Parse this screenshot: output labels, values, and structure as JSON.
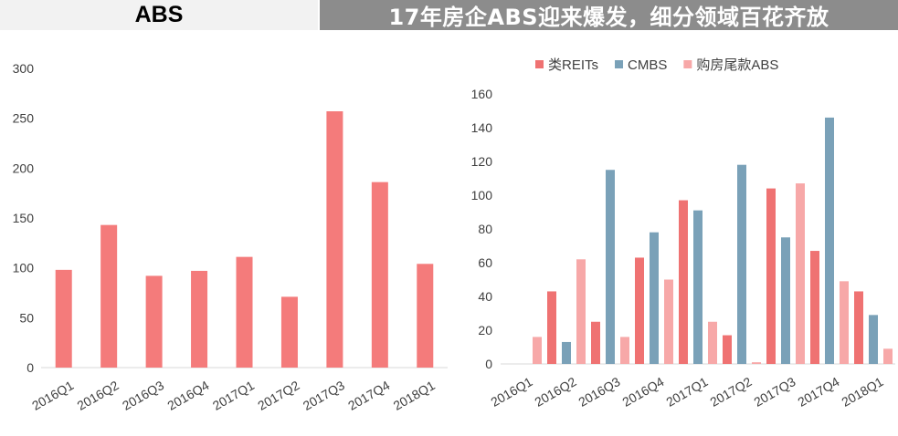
{
  "header": {
    "left_title": "ABS",
    "right_title": "17年房企ABS迎来爆发，细分领域百花齐放"
  },
  "chart_data": [
    {
      "type": "bar",
      "title": "",
      "xlabel": "",
      "ylabel": "",
      "categories": [
        "2016Q1",
        "2016Q2",
        "2016Q3",
        "2016Q4",
        "2017Q1",
        "2017Q2",
        "2017Q3",
        "2017Q4",
        "2018Q1"
      ],
      "series": [
        {
          "values": [
            98,
            143,
            92,
            97,
            111,
            71,
            257,
            186,
            104
          ],
          "color": "#f47b7b"
        }
      ],
      "ylim": [
        0,
        300
      ],
      "yticks": [
        0,
        50,
        100,
        150,
        200,
        250,
        300
      ],
      "grid": false
    },
    {
      "type": "bar",
      "title": "",
      "xlabel": "",
      "ylabel": "",
      "categories": [
        "2016Q1",
        "2016Q2",
        "2016Q3",
        "2016Q4",
        "2017Q1",
        "2017Q2",
        "2017Q3",
        "2017Q4",
        "2018Q1"
      ],
      "series": [
        {
          "name": "类REITs",
          "values": [
            0,
            43,
            25,
            63,
            97,
            17,
            104,
            67,
            43
          ],
          "color": "#ef7272"
        },
        {
          "name": "CMBS",
          "values": [
            0,
            13,
            115,
            78,
            91,
            118,
            75,
            146,
            29
          ],
          "color": "#7aa1b8"
        },
        {
          "name": "购房尾款ABS",
          "values": [
            16,
            62,
            16,
            50,
            25,
            1,
            107,
            49,
            9
          ],
          "color": "#f7a8a8"
        }
      ],
      "ylim": [
        0,
        160
      ],
      "yticks": [
        0,
        20,
        40,
        60,
        80,
        100,
        120,
        140,
        160
      ],
      "legend": "top",
      "grid": false
    }
  ]
}
